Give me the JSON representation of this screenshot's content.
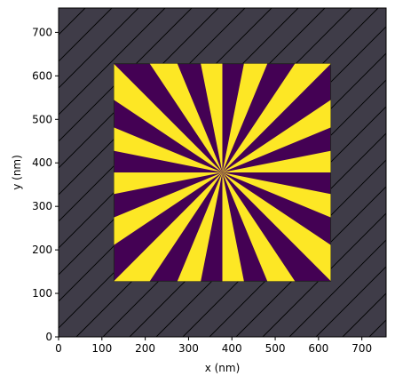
{
  "chart_data": {
    "type": "heatmap",
    "title": "",
    "xlabel": "x (nm)",
    "ylabel": "y (nm)",
    "xlim": [
      0,
      756
    ],
    "ylim": [
      0,
      756
    ],
    "x_ticks": [
      0,
      100,
      200,
      300,
      400,
      500,
      600,
      700
    ],
    "y_ticks": [
      0,
      100,
      200,
      300,
      400,
      500,
      600,
      700
    ],
    "grid": false,
    "legend": "none",
    "background_region": {
      "color": "#3f3c48",
      "hatch": "diagonal"
    },
    "structure": {
      "x_range": [
        128,
        628
      ],
      "y_range": [
        128,
        628
      ],
      "background_color": "#440154",
      "fill_color": "#fde725",
      "center": [
        378,
        378
      ],
      "spokes": 16
    }
  }
}
